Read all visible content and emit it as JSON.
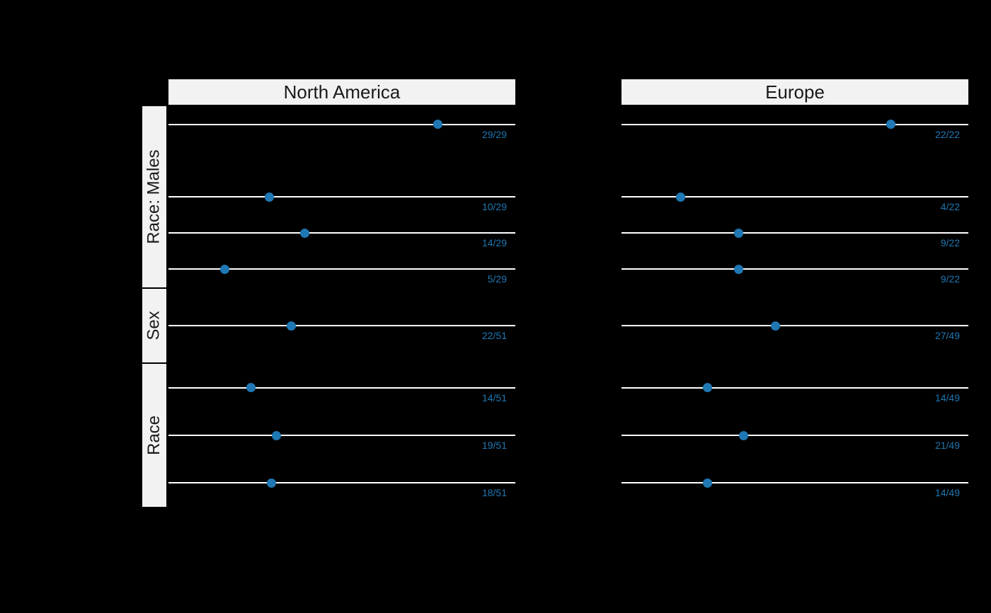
{
  "chart_data": {
    "type": "dot",
    "title": "",
    "panels": [
      {
        "title": "North America"
      },
      {
        "title": "Europe"
      }
    ],
    "colors": {
      "background": "#000000",
      "strip_bg": "#f2f2f2",
      "strip_text": "#1a1a1a",
      "line": "#ffffff",
      "dot": "#1f78b4",
      "label": "#1f78b4"
    },
    "x_axis": {
      "note": "proportion scale, 0 to 1 mapped across panel",
      "zero_frac": 0.035,
      "unit_frac": 0.742
    },
    "facets": [
      {
        "label": "Race: Males",
        "slots": 5,
        "rows": [
          {
            "slot": 0,
            "points": [
              {
                "label": "29/29",
                "num": 29,
                "den": 29
              },
              {
                "label": "22/22",
                "num": 22,
                "den": 22
              }
            ]
          },
          {
            "slot": 2,
            "points": [
              {
                "label": "10/29",
                "num": 10,
                "den": 29
              },
              {
                "label": "4/22",
                "num": 4,
                "den": 22
              }
            ]
          },
          {
            "slot": 3,
            "points": [
              {
                "label": "14/29",
                "num": 14,
                "den": 29
              },
              {
                "label": "9/22",
                "num": 9,
                "den": 22
              }
            ]
          },
          {
            "slot": 4,
            "points": [
              {
                "label": "5/29",
                "num": 5,
                "den": 29
              },
              {
                "label": "9/22",
                "num": 9,
                "den": 22
              }
            ]
          }
        ]
      },
      {
        "label": "Sex",
        "slots": 1,
        "rows": [
          {
            "slot": 0,
            "points": [
              {
                "label": "22/51",
                "num": 22,
                "den": 51
              },
              {
                "label": "27/49",
                "num": 27,
                "den": 49
              }
            ]
          }
        ]
      },
      {
        "label": "Race",
        "slots": 3,
        "rows": [
          {
            "slot": 0,
            "points": [
              {
                "label": "14/51",
                "num": 14,
                "den": 51
              },
              {
                "label": "14/49",
                "num": 14,
                "den": 49
              }
            ]
          },
          {
            "slot": 1,
            "points": [
              {
                "label": "19/51",
                "num": 19,
                "den": 51
              },
              {
                "label": "21/49",
                "num": 21,
                "den": 49
              }
            ]
          },
          {
            "slot": 2,
            "points": [
              {
                "label": "18/51",
                "num": 18,
                "den": 51
              },
              {
                "label": "14/49",
                "num": 14,
                "den": 49
              }
            ]
          }
        ]
      }
    ]
  }
}
